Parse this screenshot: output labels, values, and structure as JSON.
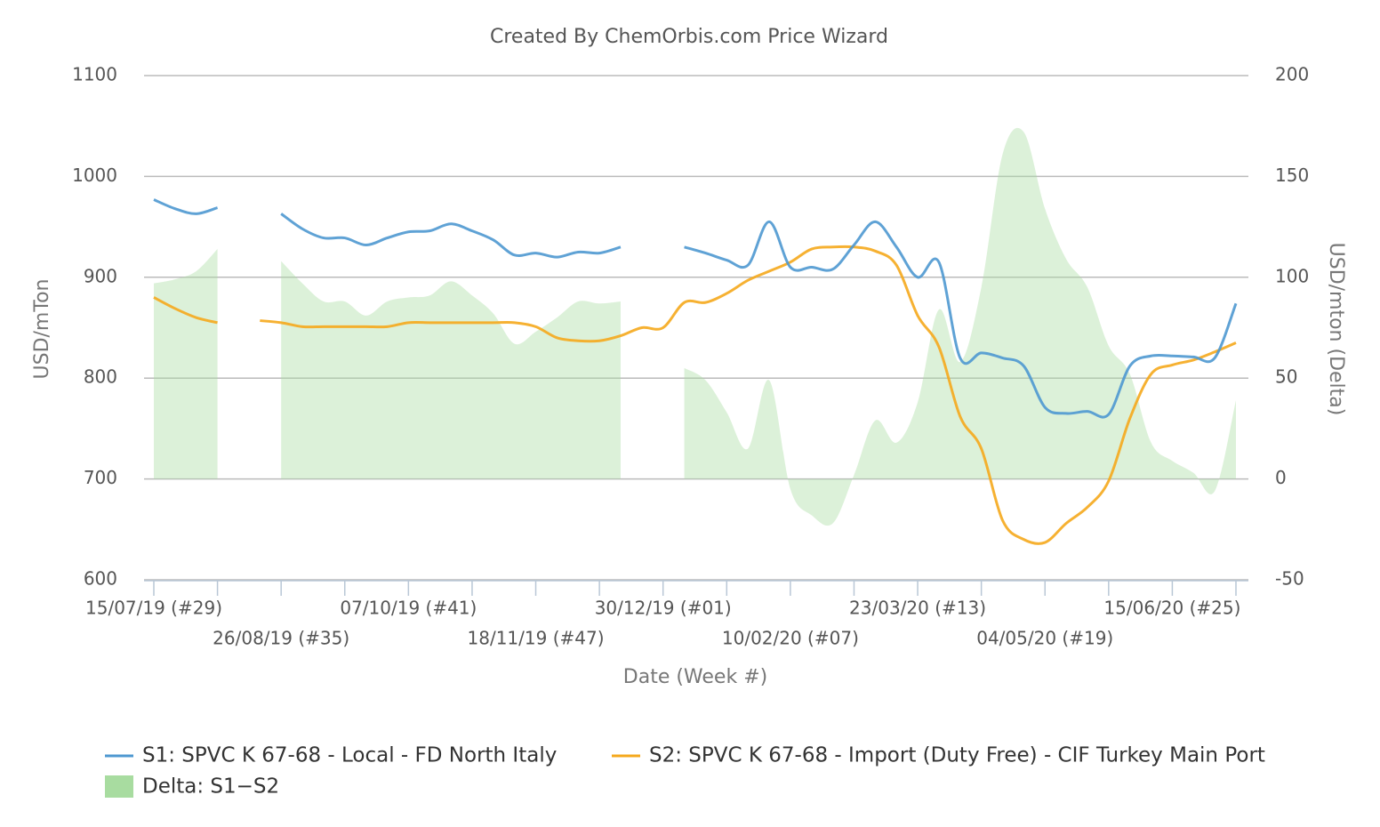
{
  "chart_data": {
    "type": "line",
    "title": "Created By ChemOrbis.com Price Wizard",
    "xlabel": "Date (Week #)",
    "ylabel": "USD/mTon",
    "y2label": "USD/mton (Delta)",
    "categories": [
      "15/07/19 (#29)",
      null,
      null,
      null,
      null,
      null,
      "26/08/19 (#35)",
      null,
      null,
      null,
      null,
      null,
      "07/10/19 (#41)",
      null,
      null,
      null,
      null,
      null,
      "18/11/19 (#47)",
      null,
      null,
      null,
      null,
      null,
      "30/12/19 (#01)",
      null,
      null,
      null,
      null,
      null,
      "10/02/20 (#07)",
      null,
      null,
      null,
      null,
      null,
      "23/03/20 (#13)",
      null,
      null,
      null,
      null,
      null,
      "04/05/20 (#19)",
      null,
      null,
      null,
      null,
      null,
      "15/06/20 (#25)",
      null,
      null,
      null
    ],
    "ylim": [
      600,
      1100
    ],
    "yticks": [
      600,
      700,
      800,
      900,
      1000,
      1100
    ],
    "y2lim": [
      -50,
      200
    ],
    "y2ticks": [
      -50,
      0,
      50,
      100,
      150,
      200
    ],
    "grid": true,
    "series": [
      {
        "name": "S1: SPVC K 67-68 - Local - FD North Italy",
        "color": "#4e98d0",
        "values": [
          977,
          968,
          963,
          969,
          null,
          null,
          963,
          948,
          939,
          939,
          932,
          939,
          945,
          946,
          953,
          946,
          937,
          922,
          924,
          920,
          925,
          924,
          930,
          null,
          null,
          930,
          924,
          917,
          912,
          955,
          910,
          910,
          908,
          932,
          955,
          930,
          900,
          915,
          820,
          825,
          820,
          812,
          771,
          765,
          767,
          764,
          812,
          822,
          822,
          821,
          820,
          874
        ]
      },
      {
        "name": "S2: SPVC K 67-68 - Import (Duty Free) - CIF Turkey Main Port",
        "color": "#f5a81c",
        "values": [
          880,
          869,
          860,
          855,
          null,
          857,
          855,
          851,
          851,
          851,
          851,
          851,
          855,
          855,
          855,
          855,
          855,
          855,
          851,
          840,
          837,
          837,
          842,
          850,
          850,
          875,
          875,
          884,
          897,
          906,
          915,
          928,
          930,
          930,
          926,
          912,
          862,
          831,
          762,
          730,
          659,
          640,
          637,
          656,
          672,
          698,
          760,
          804,
          813,
          818,
          826,
          835
        ]
      },
      {
        "name": "Delta: S1−S2",
        "color": "#a8dca0",
        "type": "area",
        "axis": "y2",
        "values": [
          97,
          99,
          103,
          114,
          null,
          null,
          108,
          97,
          88,
          88,
          81,
          88,
          90,
          91,
          98,
          91,
          82,
          67,
          73,
          80,
          88,
          87,
          88,
          null,
          null,
          55,
          49,
          33,
          15,
          49,
          -5,
          -18,
          -22,
          2,
          29,
          18,
          38,
          84,
          58,
          95,
          161,
          172,
          134,
          109,
          95,
          66,
          52,
          18,
          9,
          3,
          -6,
          39
        ]
      }
    ]
  }
}
